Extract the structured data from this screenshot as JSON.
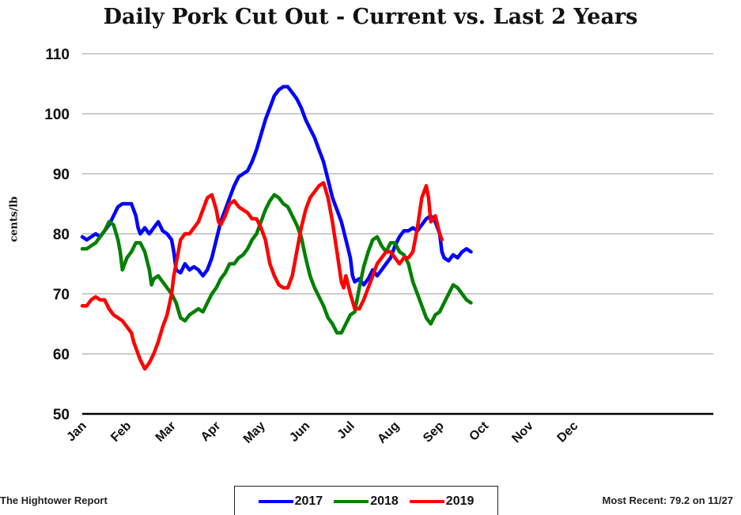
{
  "chart_data": {
    "type": "line",
    "title": "Daily Pork Cut Out - Current vs. Last 2 Years",
    "ylabel": "cents/lb",
    "xlabel": "",
    "ylim": [
      50,
      110
    ],
    "yticks": [
      50,
      60,
      70,
      80,
      90,
      100,
      110
    ],
    "xticks": [
      "Jan",
      "Feb",
      "Mar",
      "Apr",
      "May",
      "Jun",
      "Jul",
      "Aug",
      "Sep",
      "Oct",
      "Nov",
      "Dec"
    ],
    "grid": true,
    "legend_position": "bottom-center",
    "series": [
      {
        "name": "2017",
        "color": "#0000ff",
        "points": [
          [
            0,
            79.5
          ],
          [
            0.1,
            79
          ],
          [
            0.2,
            79.5
          ],
          [
            0.3,
            80
          ],
          [
            0.4,
            79.5
          ],
          [
            0.5,
            80.5
          ],
          [
            0.6,
            81.5
          ],
          [
            0.7,
            83
          ],
          [
            0.8,
            84.5
          ],
          [
            0.9,
            85
          ],
          [
            1.0,
            85
          ],
          [
            1.1,
            85
          ],
          [
            1.15,
            84
          ],
          [
            1.2,
            83
          ],
          [
            1.25,
            81
          ],
          [
            1.3,
            80
          ],
          [
            1.4,
            81
          ],
          [
            1.5,
            80
          ],
          [
            1.6,
            81
          ],
          [
            1.7,
            82
          ],
          [
            1.8,
            80.5
          ],
          [
            1.9,
            80
          ],
          [
            2.0,
            79
          ],
          [
            2.05,
            77
          ],
          [
            2.1,
            74
          ],
          [
            2.2,
            73.5
          ],
          [
            2.3,
            75
          ],
          [
            2.4,
            74
          ],
          [
            2.5,
            74.5
          ],
          [
            2.6,
            74
          ],
          [
            2.7,
            73
          ],
          [
            2.8,
            74
          ],
          [
            2.9,
            76
          ],
          [
            3.0,
            79
          ],
          [
            3.1,
            82
          ],
          [
            3.2,
            84
          ],
          [
            3.3,
            86
          ],
          [
            3.4,
            88
          ],
          [
            3.5,
            89.5
          ],
          [
            3.6,
            90
          ],
          [
            3.7,
            90.5
          ],
          [
            3.8,
            92
          ],
          [
            3.9,
            94
          ],
          [
            4.0,
            96.5
          ],
          [
            4.1,
            99
          ],
          [
            4.2,
            101
          ],
          [
            4.3,
            103
          ],
          [
            4.4,
            104
          ],
          [
            4.5,
            104.5
          ],
          [
            4.6,
            104.5
          ],
          [
            4.7,
            103.5
          ],
          [
            4.8,
            102.5
          ],
          [
            4.9,
            101
          ],
          [
            5.0,
            99
          ],
          [
            5.1,
            97.5
          ],
          [
            5.2,
            96
          ],
          [
            5.3,
            94
          ],
          [
            5.4,
            92
          ],
          [
            5.5,
            89
          ],
          [
            5.6,
            86
          ],
          [
            5.7,
            84
          ],
          [
            5.8,
            82
          ],
          [
            5.9,
            79
          ],
          [
            6.0,
            76
          ],
          [
            6.05,
            73
          ],
          [
            6.1,
            72
          ],
          [
            6.2,
            72.5
          ],
          [
            6.3,
            71.5
          ],
          [
            6.4,
            72.5
          ],
          [
            6.5,
            74
          ],
          [
            6.6,
            73
          ],
          [
            6.7,
            74
          ],
          [
            6.8,
            75
          ],
          [
            6.9,
            76
          ],
          [
            7.0,
            78
          ],
          [
            7.1,
            79.5
          ],
          [
            7.2,
            80.5
          ],
          [
            7.3,
            80.5
          ],
          [
            7.4,
            81
          ],
          [
            7.5,
            80.5
          ],
          [
            7.6,
            81.5
          ],
          [
            7.7,
            82.5
          ],
          [
            7.8,
            83
          ],
          [
            7.9,
            82
          ],
          [
            8.0,
            80
          ],
          [
            8.05,
            77
          ],
          [
            8.1,
            76
          ],
          [
            8.2,
            75.5
          ],
          [
            8.3,
            76.5
          ],
          [
            8.4,
            76
          ],
          [
            8.5,
            77
          ],
          [
            8.6,
            77.5
          ],
          [
            8.7,
            77
          ]
        ]
      },
      {
        "name": "2018",
        "color": "#008000",
        "points": [
          [
            0,
            77.5
          ],
          [
            0.1,
            77.5
          ],
          [
            0.2,
            78
          ],
          [
            0.3,
            78.5
          ],
          [
            0.4,
            79.5
          ],
          [
            0.5,
            80.5
          ],
          [
            0.6,
            82
          ],
          [
            0.7,
            81.5
          ],
          [
            0.8,
            79
          ],
          [
            0.85,
            77
          ],
          [
            0.9,
            74
          ],
          [
            1.0,
            76
          ],
          [
            1.1,
            77
          ],
          [
            1.2,
            78.5
          ],
          [
            1.3,
            78.5
          ],
          [
            1.4,
            77
          ],
          [
            1.5,
            74
          ],
          [
            1.55,
            71.5
          ],
          [
            1.6,
            72.5
          ],
          [
            1.7,
            73
          ],
          [
            1.8,
            72
          ],
          [
            1.9,
            71
          ],
          [
            2.0,
            70
          ],
          [
            2.1,
            68.5
          ],
          [
            2.2,
            66
          ],
          [
            2.3,
            65.5
          ],
          [
            2.4,
            66.5
          ],
          [
            2.5,
            67
          ],
          [
            2.6,
            67.5
          ],
          [
            2.7,
            67
          ],
          [
            2.8,
            68.5
          ],
          [
            2.9,
            70
          ],
          [
            3.0,
            71
          ],
          [
            3.1,
            72.5
          ],
          [
            3.2,
            73.5
          ],
          [
            3.3,
            75
          ],
          [
            3.4,
            75
          ],
          [
            3.5,
            76
          ],
          [
            3.6,
            76.5
          ],
          [
            3.7,
            77.5
          ],
          [
            3.8,
            79
          ],
          [
            3.9,
            80
          ],
          [
            4.0,
            82
          ],
          [
            4.1,
            84
          ],
          [
            4.2,
            85.5
          ],
          [
            4.3,
            86.5
          ],
          [
            4.4,
            86
          ],
          [
            4.5,
            85
          ],
          [
            4.6,
            84.5
          ],
          [
            4.7,
            83
          ],
          [
            4.8,
            81.5
          ],
          [
            4.9,
            79.5
          ],
          [
            5.0,
            76
          ],
          [
            5.1,
            73
          ],
          [
            5.2,
            71
          ],
          [
            5.3,
            69.5
          ],
          [
            5.4,
            68
          ],
          [
            5.5,
            66
          ],
          [
            5.6,
            65
          ],
          [
            5.7,
            63.5
          ],
          [
            5.8,
            63.5
          ],
          [
            5.9,
            65
          ],
          [
            6.0,
            66.5
          ],
          [
            6.1,
            67
          ],
          [
            6.2,
            71
          ],
          [
            6.3,
            74.5
          ],
          [
            6.4,
            77
          ],
          [
            6.5,
            79
          ],
          [
            6.6,
            79.5
          ],
          [
            6.7,
            78
          ],
          [
            6.8,
            77
          ],
          [
            6.9,
            78.5
          ],
          [
            7.0,
            78.5
          ],
          [
            7.1,
            77
          ],
          [
            7.2,
            76.5
          ],
          [
            7.3,
            75
          ],
          [
            7.4,
            72
          ],
          [
            7.5,
            70
          ],
          [
            7.6,
            68
          ],
          [
            7.7,
            66
          ],
          [
            7.8,
            65
          ],
          [
            7.9,
            66.5
          ],
          [
            8.0,
            67
          ],
          [
            8.1,
            68.5
          ],
          [
            8.2,
            70
          ],
          [
            8.3,
            71.5
          ],
          [
            8.4,
            71
          ],
          [
            8.5,
            70
          ],
          [
            8.6,
            69
          ],
          [
            8.7,
            68.5
          ]
        ]
      },
      {
        "name": "2019",
        "color": "#ff0000",
        "points": [
          [
            0,
            68
          ],
          [
            0.1,
            68
          ],
          [
            0.2,
            69
          ],
          [
            0.3,
            69.5
          ],
          [
            0.4,
            69
          ],
          [
            0.5,
            69
          ],
          [
            0.6,
            67.5
          ],
          [
            0.7,
            66.5
          ],
          [
            0.8,
            66
          ],
          [
            0.9,
            65.5
          ],
          [
            1.0,
            64.5
          ],
          [
            1.1,
            63.5
          ],
          [
            1.15,
            62
          ],
          [
            1.2,
            61
          ],
          [
            1.3,
            59
          ],
          [
            1.4,
            57.5
          ],
          [
            1.5,
            58.5
          ],
          [
            1.6,
            60
          ],
          [
            1.7,
            62
          ],
          [
            1.8,
            64.5
          ],
          [
            1.9,
            66.5
          ],
          [
            2.0,
            70
          ],
          [
            2.05,
            73
          ],
          [
            2.1,
            75
          ],
          [
            2.2,
            79
          ],
          [
            2.3,
            80
          ],
          [
            2.4,
            80
          ],
          [
            2.5,
            81
          ],
          [
            2.6,
            82
          ],
          [
            2.7,
            84
          ],
          [
            2.8,
            86
          ],
          [
            2.9,
            86.5
          ],
          [
            3.0,
            84
          ],
          [
            3.05,
            82
          ],
          [
            3.1,
            81.5
          ],
          [
            3.2,
            83
          ],
          [
            3.3,
            85
          ],
          [
            3.4,
            85.5
          ],
          [
            3.5,
            84.5
          ],
          [
            3.6,
            84
          ],
          [
            3.7,
            83.5
          ],
          [
            3.8,
            82.5
          ],
          [
            3.9,
            82.5
          ],
          [
            4.0,
            81
          ],
          [
            4.1,
            79
          ],
          [
            4.2,
            75
          ],
          [
            4.3,
            73
          ],
          [
            4.4,
            71.5
          ],
          [
            4.5,
            71
          ],
          [
            4.6,
            71
          ],
          [
            4.7,
            73
          ],
          [
            4.8,
            77
          ],
          [
            4.9,
            81
          ],
          [
            5.0,
            84
          ],
          [
            5.1,
            86
          ],
          [
            5.2,
            87
          ],
          [
            5.3,
            88
          ],
          [
            5.4,
            88.5
          ],
          [
            5.5,
            86
          ],
          [
            5.6,
            82
          ],
          [
            5.7,
            77
          ],
          [
            5.8,
            72
          ],
          [
            5.85,
            71
          ],
          [
            5.9,
            73
          ],
          [
            6.0,
            70
          ],
          [
            6.1,
            67.5
          ],
          [
            6.2,
            67.5
          ],
          [
            6.3,
            69
          ],
          [
            6.4,
            71
          ],
          [
            6.5,
            73
          ],
          [
            6.6,
            75
          ],
          [
            6.7,
            76
          ],
          [
            6.8,
            77
          ],
          [
            6.9,
            77
          ],
          [
            7.0,
            76
          ],
          [
            7.1,
            75
          ],
          [
            7.2,
            76
          ],
          [
            7.3,
            76
          ],
          [
            7.4,
            77
          ],
          [
            7.5,
            81
          ],
          [
            7.6,
            86
          ],
          [
            7.7,
            88
          ],
          [
            7.75,
            86
          ],
          [
            7.8,
            82
          ],
          [
            7.9,
            83
          ],
          [
            8.0,
            80
          ],
          [
            8.05,
            79
          ]
        ]
      }
    ]
  },
  "footer": {
    "source": "The Hightower Report",
    "most_recent": "Most Recent: 79.2 on 11/27"
  }
}
